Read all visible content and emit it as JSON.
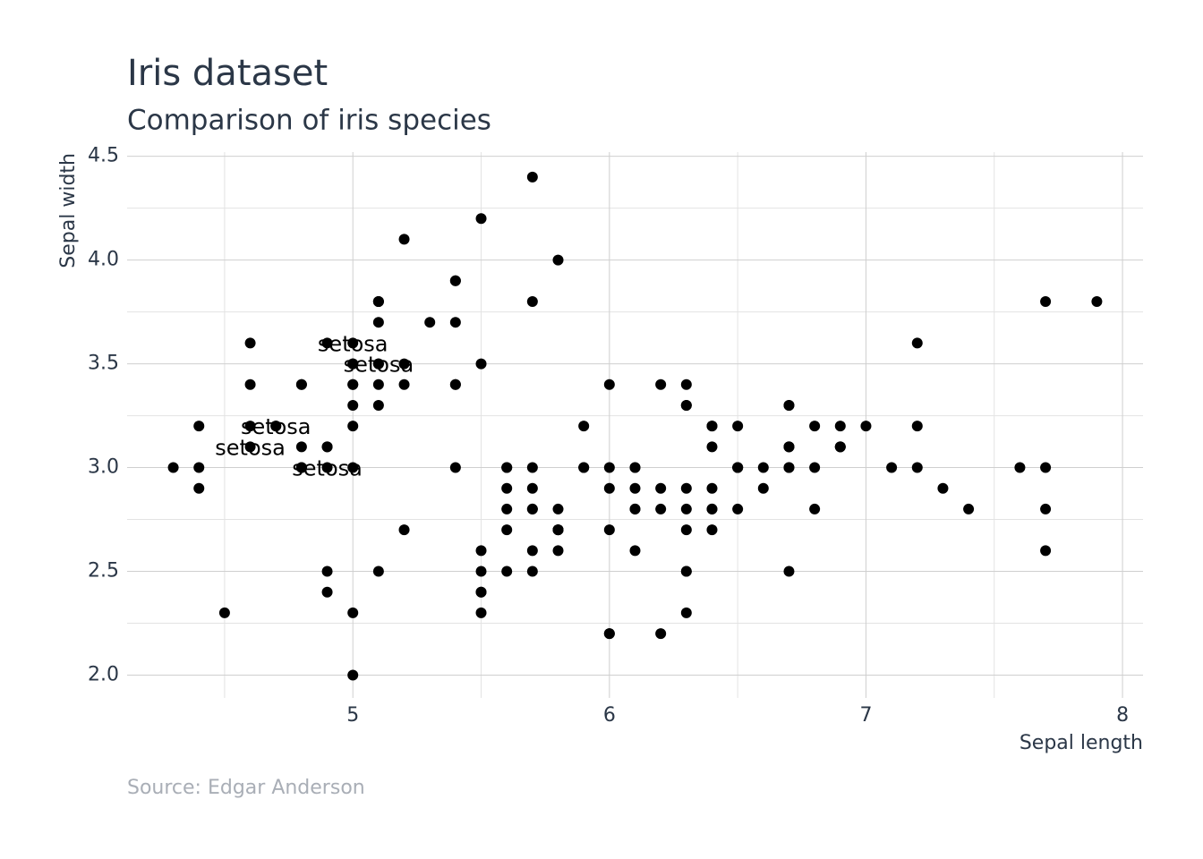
{
  "chart_data": {
    "type": "scatter",
    "title": "Iris dataset",
    "subtitle": "Comparison of iris species",
    "x_label": "Sepal length",
    "y_label": "Sepal width",
    "source": "Source: Edgar Anderson",
    "color": "#000000",
    "grid": true,
    "xlim": [
      4.12,
      8.08
    ],
    "ylim": [
      1.89,
      4.52
    ],
    "xticks": [
      5,
      6,
      7,
      8
    ],
    "x_minor_ticks": [
      4.5,
      5.5,
      6.5,
      7.5
    ],
    "yticks": [
      {
        "value": 2,
        "label": "2.0"
      },
      2.5,
      {
        "value": 3,
        "label": "3.0"
      },
      3.5,
      {
        "value": 4,
        "label": "4.0"
      },
      4.5
    ],
    "y_minor_ticks": [
      2.25,
      2.75,
      3.25,
      3.75,
      4.25
    ],
    "x": [
      5.1,
      4.9,
      4.7,
      4.6,
      5.0,
      5.4,
      4.6,
      5.0,
      4.4,
      4.9,
      5.4,
      4.8,
      4.8,
      4.3,
      5.8,
      5.7,
      5.4,
      5.1,
      5.7,
      5.1,
      5.4,
      5.1,
      4.6,
      5.1,
      4.8,
      5.0,
      5.0,
      5.2,
      5.2,
      4.7,
      4.8,
      5.4,
      5.2,
      5.5,
      4.9,
      5.0,
      5.5,
      4.9,
      4.4,
      5.1,
      5.0,
      4.5,
      4.4,
      5.0,
      5.1,
      4.8,
      5.1,
      4.6,
      5.3,
      5.0,
      7.0,
      6.4,
      6.9,
      5.5,
      6.5,
      5.7,
      6.3,
      4.9,
      6.6,
      5.2,
      5.0,
      5.9,
      6.0,
      6.1,
      5.6,
      6.7,
      5.6,
      5.8,
      6.2,
      5.6,
      5.9,
      6.1,
      6.3,
      6.1,
      6.4,
      6.6,
      6.8,
      6.7,
      6.0,
      5.7,
      5.5,
      5.5,
      5.8,
      6.0,
      5.4,
      6.0,
      6.7,
      6.3,
      5.6,
      5.5,
      5.5,
      6.1,
      5.8,
      5.0,
      5.6,
      5.7,
      5.7,
      6.2,
      5.1,
      5.7,
      6.3,
      5.8,
      7.1,
      6.3,
      6.5,
      7.6,
      4.9,
      7.3,
      6.7,
      7.2,
      6.5,
      6.4,
      6.8,
      5.7,
      5.8,
      6.4,
      6.5,
      7.7,
      7.7,
      6.0,
      6.9,
      5.6,
      7.7,
      6.3,
      6.7,
      7.2,
      6.2,
      6.1,
      6.4,
      7.2,
      7.4,
      7.9,
      6.4,
      6.3,
      6.1,
      7.7,
      6.3,
      6.4,
      6.0,
      6.9,
      6.7,
      6.9,
      5.8,
      6.8,
      6.7,
      6.7,
      6.3,
      6.5,
      6.2,
      5.9
    ],
    "y": [
      3.5,
      3.0,
      3.2,
      3.1,
      3.6,
      3.9,
      3.4,
      3.4,
      2.9,
      3.1,
      3.7,
      3.4,
      3.0,
      3.0,
      4.0,
      4.4,
      3.9,
      3.5,
      3.8,
      3.8,
      3.4,
      3.7,
      3.6,
      3.3,
      3.4,
      3.0,
      3.4,
      3.5,
      3.4,
      3.2,
      3.1,
      3.4,
      4.1,
      4.2,
      3.1,
      3.2,
      3.5,
      3.6,
      3.0,
      3.4,
      3.5,
      2.3,
      3.2,
      3.5,
      3.8,
      3.0,
      3.8,
      3.2,
      3.7,
      3.3,
      3.2,
      3.2,
      3.1,
      2.3,
      2.8,
      2.8,
      3.3,
      2.4,
      2.9,
      2.7,
      2.0,
      3.0,
      2.2,
      2.9,
      2.9,
      3.1,
      3.0,
      2.7,
      2.2,
      2.5,
      3.2,
      2.8,
      2.5,
      2.8,
      2.9,
      3.0,
      2.8,
      3.0,
      2.9,
      2.6,
      2.4,
      2.4,
      2.7,
      2.7,
      3.0,
      3.4,
      3.1,
      2.3,
      3.0,
      2.5,
      2.6,
      3.0,
      2.6,
      2.3,
      2.7,
      3.0,
      2.9,
      2.9,
      2.5,
      2.8,
      3.3,
      2.7,
      3.0,
      2.9,
      3.0,
      3.0,
      2.5,
      2.9,
      2.5,
      3.6,
      3.2,
      2.7,
      3.0,
      2.5,
      2.8,
      3.2,
      3.0,
      3.8,
      2.6,
      2.2,
      3.2,
      2.8,
      2.8,
      2.7,
      3.3,
      3.2,
      2.8,
      3.0,
      2.8,
      3.0,
      2.8,
      3.8,
      2.8,
      2.8,
      2.6,
      3.0,
      3.4,
      3.1,
      3.0,
      3.1,
      3.1,
      3.1,
      2.7,
      3.2,
      3.3,
      3.0,
      2.5,
      3.0,
      3.4,
      3.0
    ],
    "point_labels": [
      "setosa",
      "setosa",
      "setosa",
      "setosa",
      "setosa",
      null,
      null,
      null,
      null,
      null,
      null,
      null,
      null,
      null,
      null,
      null,
      null,
      null,
      null,
      null,
      null,
      null,
      null,
      null,
      null,
      null,
      null,
      null,
      null,
      null,
      null,
      null,
      null,
      null,
      null,
      null,
      null,
      null,
      null,
      null,
      null,
      null,
      null,
      null,
      null,
      null,
      null,
      null,
      null,
      null,
      null,
      null,
      null,
      null,
      null,
      null,
      null,
      null,
      null,
      null,
      null,
      null,
      null,
      null,
      null,
      null,
      null,
      null,
      null,
      null,
      null,
      null,
      null,
      null,
      null,
      null,
      null,
      null,
      null,
      null,
      null,
      null,
      null,
      null,
      null,
      null,
      null,
      null,
      null,
      null,
      null,
      null,
      null,
      null,
      null,
      null,
      null,
      null,
      null,
      null,
      null,
      null,
      null,
      null,
      null,
      null,
      null,
      null,
      null,
      null,
      null,
      null,
      null,
      null,
      null,
      null,
      null,
      null,
      null,
      null,
      null,
      null,
      null,
      null,
      null,
      null,
      null,
      null,
      null,
      null,
      null,
      null,
      null,
      null,
      null,
      null,
      null,
      null,
      null,
      null,
      null,
      null,
      null,
      null,
      null,
      null,
      null,
      null,
      null,
      null
    ]
  }
}
